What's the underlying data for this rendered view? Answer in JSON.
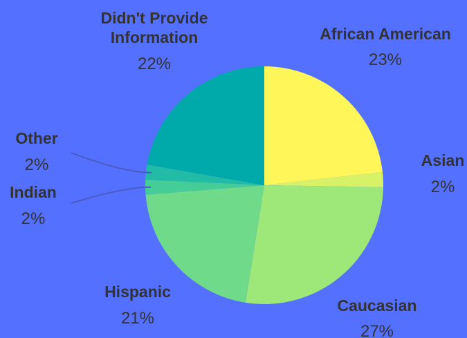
{
  "chart_data": {
    "type": "pie",
    "title": "",
    "legend": "none",
    "slices": [
      {
        "name": "African American",
        "label_lines": [
          "African American"
        ],
        "value": 23,
        "label": "23%",
        "color": "#fff75a"
      },
      {
        "name": "Asian",
        "label_lines": [
          "Asian"
        ],
        "value": 2,
        "label": "2%",
        "color": "#d8f268"
      },
      {
        "name": "Caucasian",
        "label_lines": [
          "Caucasian"
        ],
        "value": 27,
        "label": "27%",
        "color": "#9ee87a"
      },
      {
        "name": "Hispanic",
        "label_lines": [
          "Hispanic"
        ],
        "value": 21,
        "label": "21%",
        "color": "#6fda8a"
      },
      {
        "name": "Indian",
        "label_lines": [
          "Indian"
        ],
        "value": 2,
        "label": "2%",
        "color": "#44cc99"
      },
      {
        "name": "Other",
        "label_lines": [
          "Other"
        ],
        "value": 2,
        "label": "2%",
        "color": "#22bca6"
      },
      {
        "name": "Didn't Provide Information",
        "label_lines": [
          "Didn't Provide",
          "Information"
        ],
        "value": 22,
        "label": "22%",
        "color": "#00aaaa"
      }
    ],
    "background": "#5470ff",
    "label_color": "#333333",
    "leader_color": "#4a5bc4"
  }
}
